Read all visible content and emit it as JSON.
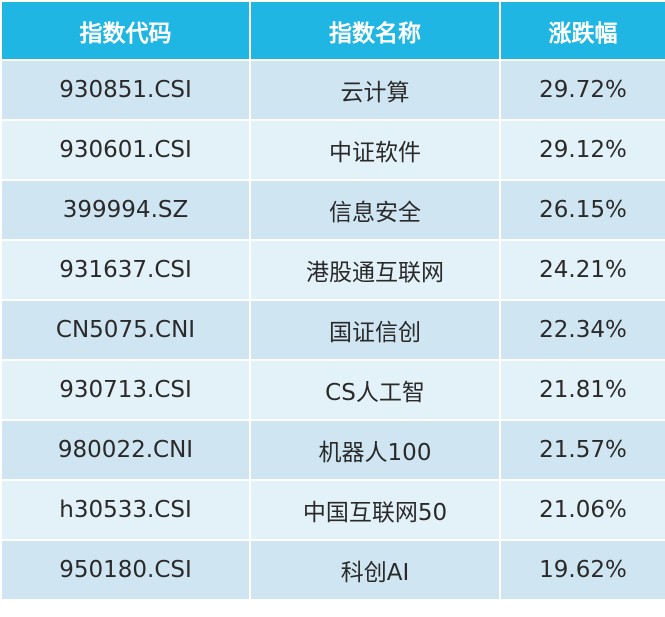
{
  "table": {
    "header": [
      "指数代码",
      "指数名称",
      "涨跌幅"
    ],
    "rows": [
      [
        "930851.CSI",
        "云计算",
        "29.72%"
      ],
      [
        "930601.CSI",
        "中证软件",
        "29.12%"
      ],
      [
        "399994.SZ",
        "信息安全",
        "26.15%"
      ],
      [
        "931637.CSI",
        "港股通互联网",
        "24.21%"
      ],
      [
        "CN5075.CNI",
        "国证信创",
        "22.34%"
      ],
      [
        "930713.CSI",
        "CS人工智",
        "21.81%"
      ],
      [
        "980022.CNI",
        "机器人100",
        "21.57%"
      ],
      [
        "h30533.CSI",
        "中国互联网50",
        "21.06%"
      ],
      [
        "950180.CSI",
        "科创AI",
        "19.62%"
      ]
    ]
  }
}
